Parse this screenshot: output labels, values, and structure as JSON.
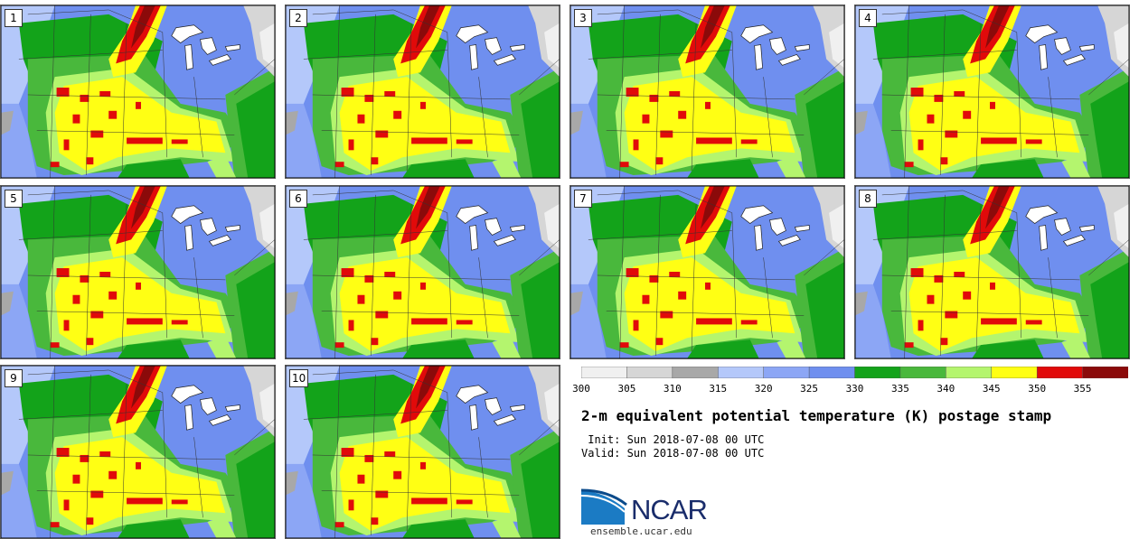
{
  "product": {
    "title": "2-m equivalent potential temperature (K) postage stamp",
    "init": " Init: Sun 2018-07-08 00 UTC",
    "valid": "Valid: Sun 2018-07-08 00 UTC"
  },
  "members": [
    "1",
    "2",
    "3",
    "4",
    "5",
    "6",
    "7",
    "8",
    "9",
    "10"
  ],
  "colorbar": {
    "ticks": [
      "300",
      "305",
      "310",
      "315",
      "320",
      "325",
      "330",
      "335",
      "340",
      "345",
      "350",
      "355"
    ],
    "colors": [
      "#f0f0f0",
      "#d6d6d6",
      "#a8a8a8",
      "#b4c8fa",
      "#8ca6f5",
      "#6f8fef",
      "#13a31a",
      "#49b83c",
      "#b4f56e",
      "#ffff14",
      "#e10a0a",
      "#8b0a0a"
    ]
  },
  "branding": {
    "logo_text": "NCAR",
    "url": "ensemble.ucar.edu"
  }
}
